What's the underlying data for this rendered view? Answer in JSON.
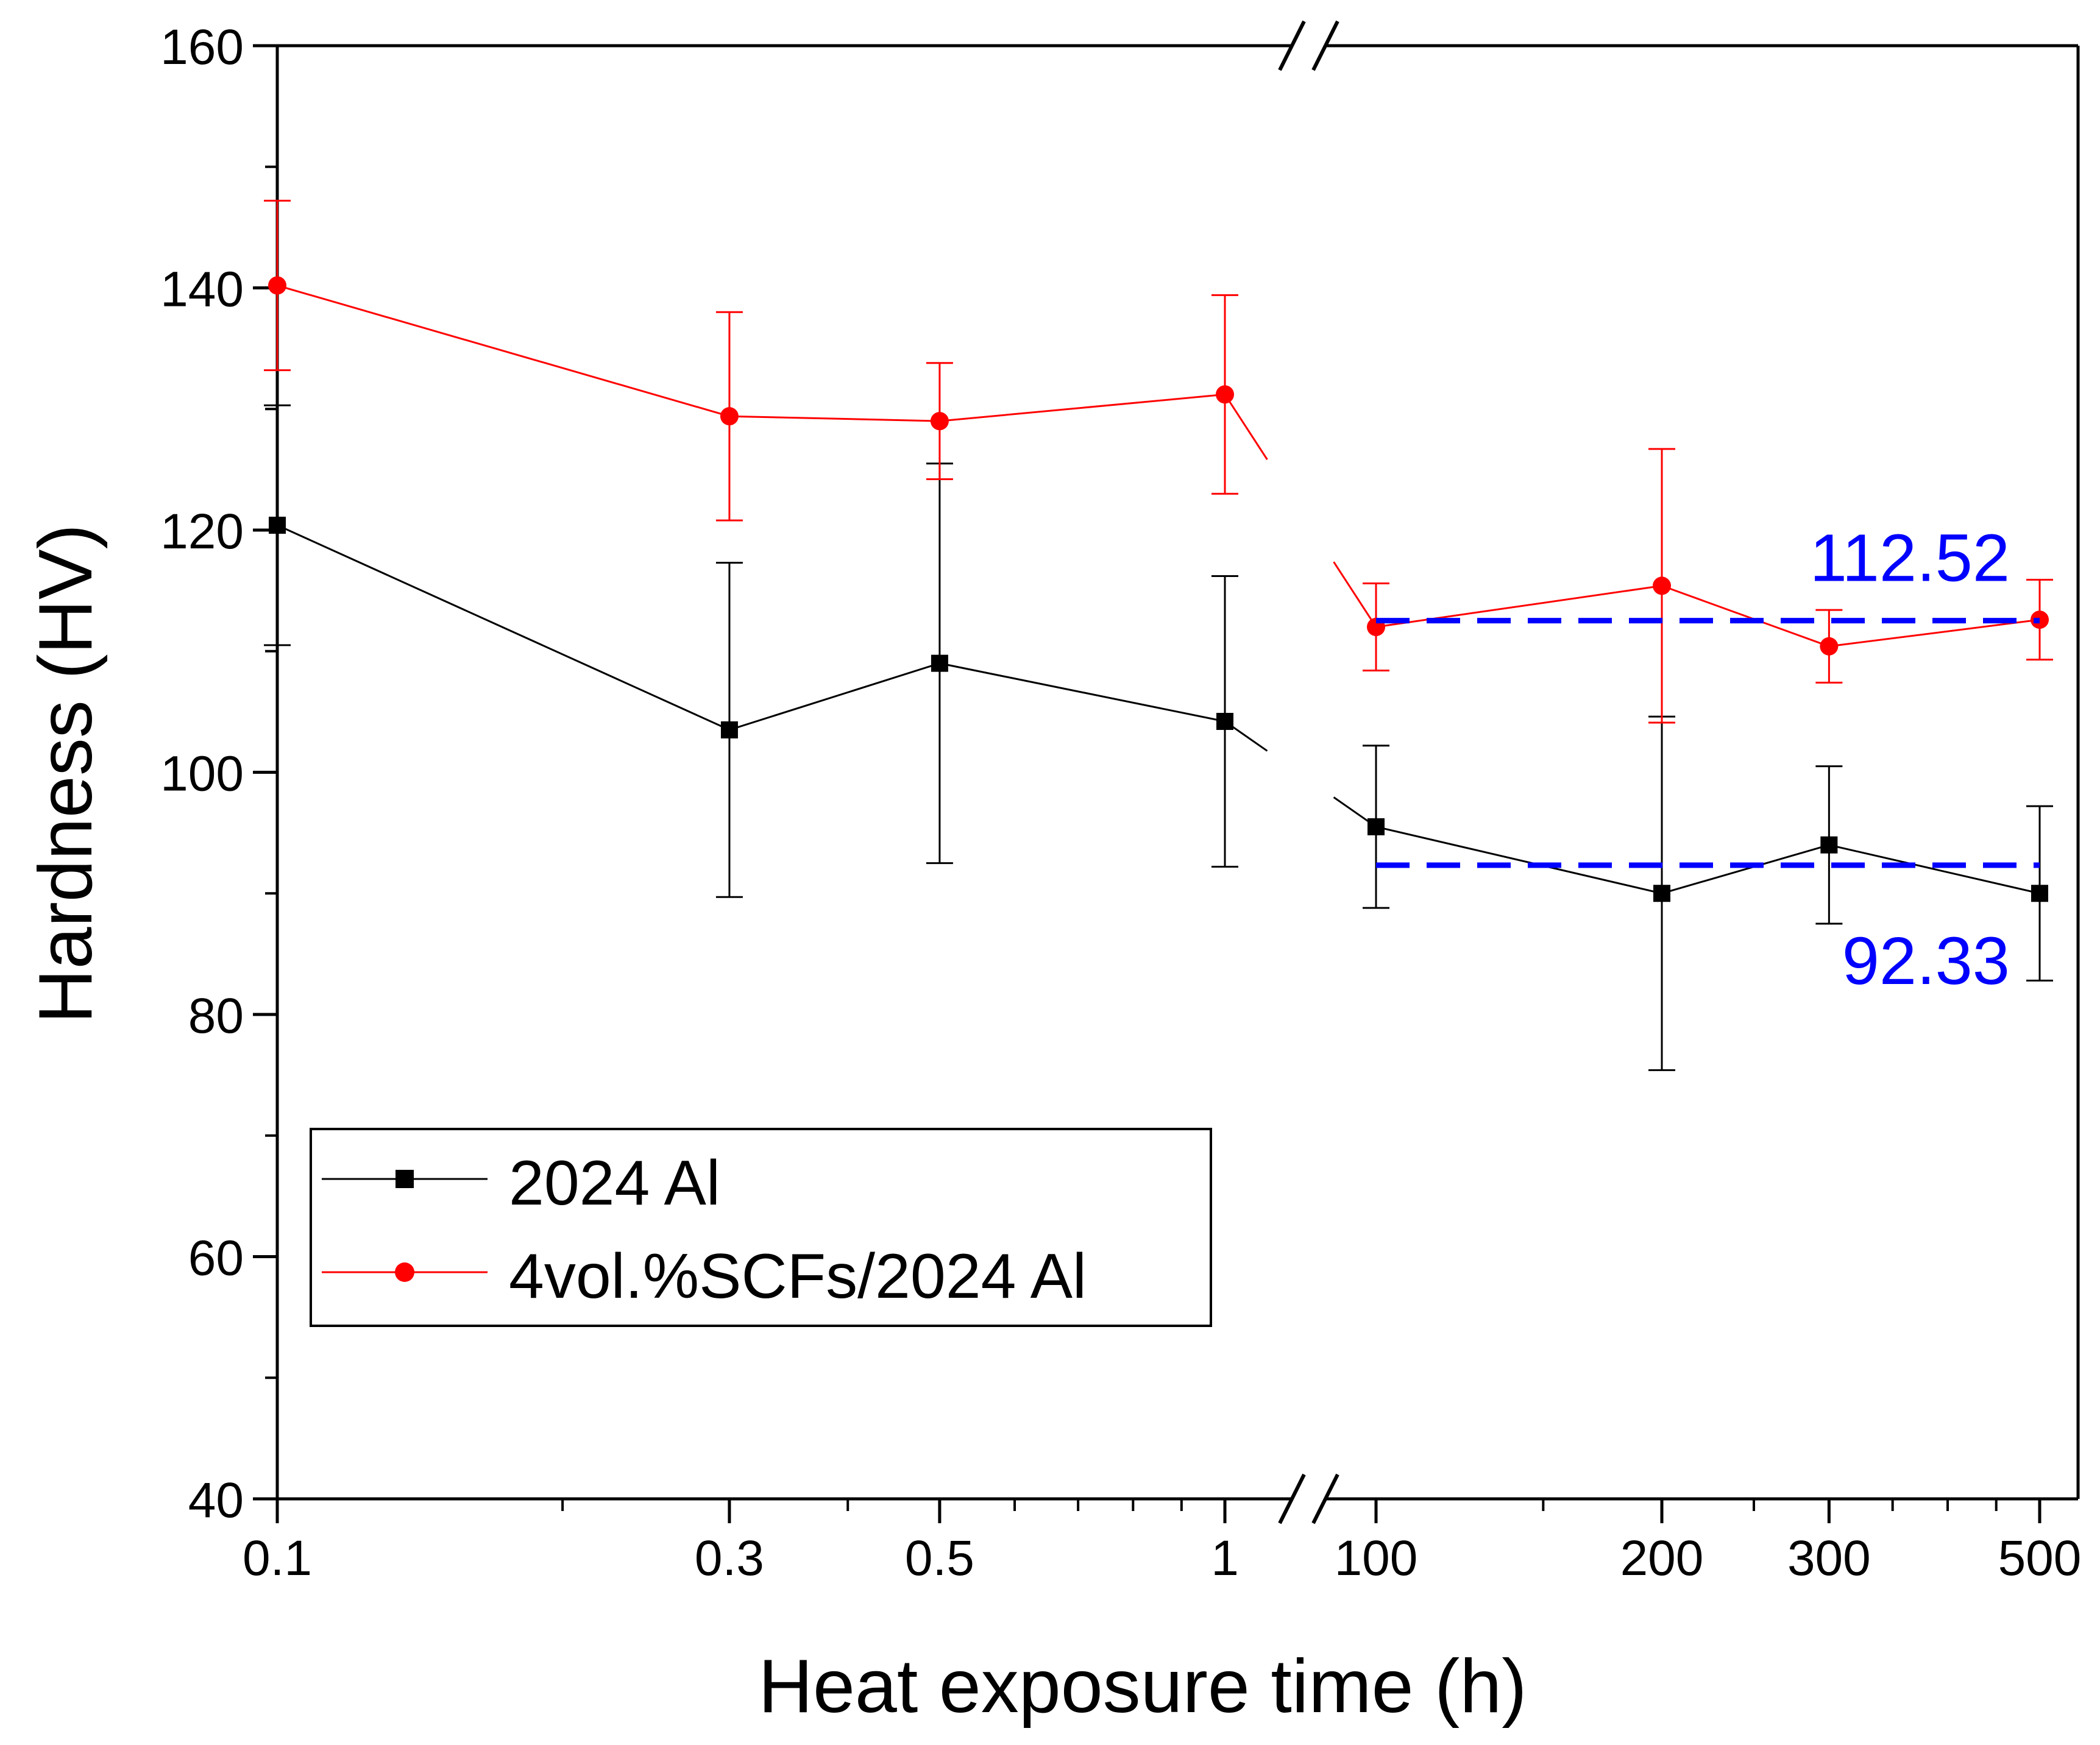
{
  "chart_data": {
    "type": "line",
    "xlabel": "Heat exposure time (h)",
    "ylabel": "Hardness (HV)",
    "ylim": [
      40,
      160
    ],
    "y_ticks": [
      40,
      60,
      80,
      100,
      120,
      140,
      160
    ],
    "x_scale": "log with axis break between 1 and 100",
    "x_segments": [
      {
        "range": [
          0.1,
          1
        ],
        "ticks": [
          0.1,
          0.3,
          0.5,
          1
        ],
        "tick_labels": [
          "0.1",
          "0.3",
          "0.5",
          "1"
        ]
      },
      {
        "range": [
          100,
          500
        ],
        "ticks": [
          100,
          200,
          300,
          500
        ],
        "tick_labels": [
          "100",
          "200",
          "300",
          "500"
        ]
      }
    ],
    "series": [
      {
        "name": "2024 Al",
        "color": "#000000",
        "marker": "square",
        "x": [
          0.1,
          0.3,
          0.5,
          1,
          100,
          200,
          300,
          500
        ],
        "values": [
          120.4,
          103.5,
          109.0,
          104.2,
          95.5,
          90.0,
          94.0,
          90.0
        ],
        "errors": [
          9.9,
          13.8,
          16.5,
          12.0,
          6.7,
          14.6,
          6.5,
          7.2
        ]
      },
      {
        "name": "4vol.%SCFs/2024 Al",
        "color": "#ff0000",
        "marker": "circle",
        "x": [
          0.1,
          0.3,
          0.5,
          1,
          100,
          200,
          300,
          500
        ],
        "values": [
          140.2,
          129.4,
          129.0,
          131.2,
          112.0,
          115.4,
          110.4,
          112.6
        ],
        "errors": [
          7.0,
          8.6,
          4.8,
          8.2,
          3.6,
          11.3,
          3.0,
          3.3
        ]
      }
    ],
    "reference_lines": [
      {
        "value": 112.52,
        "label": "112.52",
        "color": "#0000ff",
        "x_range": [
          100,
          500
        ],
        "label_position": "above"
      },
      {
        "value": 92.33,
        "label": "92.33",
        "color": "#0000ff",
        "x_range": [
          100,
          500
        ],
        "label_position": "below"
      }
    ],
    "legend": {
      "position": "bottom-left",
      "entries": [
        "2024 Al",
        "4vol.%SCFs/2024 Al"
      ]
    }
  }
}
